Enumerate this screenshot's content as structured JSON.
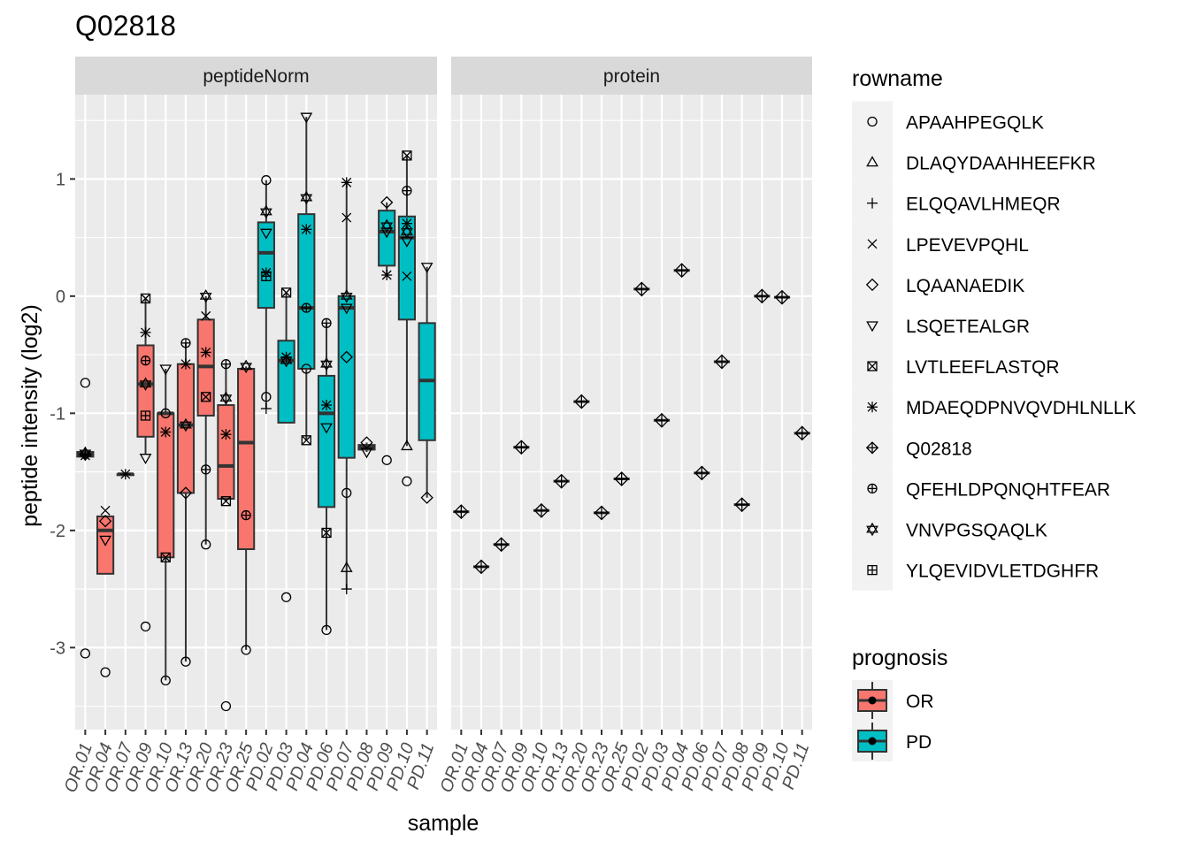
{
  "chart_data": {
    "type": "box",
    "title": "Q02818",
    "xlabel": "sample",
    "ylabel": "peptide intensity (log2)",
    "ylim": [
      -3.7,
      1.72
    ],
    "yticks": [
      -3,
      -2,
      -1,
      0,
      1
    ],
    "facets": [
      "peptideNorm",
      "protein"
    ],
    "samples": [
      "OR.01",
      "OR.04",
      "OR.07",
      "OR.09",
      "OR.10",
      "OR.13",
      "OR.20",
      "OR.23",
      "OR.25",
      "PD.02",
      "PD.03",
      "PD.04",
      "PD.06",
      "PD.07",
      "PD.08",
      "PD.09",
      "PD.10",
      "PD.11"
    ],
    "sample_prognosis": [
      "OR",
      "OR",
      "OR",
      "OR",
      "OR",
      "OR",
      "OR",
      "OR",
      "OR",
      "PD",
      "PD",
      "PD",
      "PD",
      "PD",
      "PD",
      "PD",
      "PD",
      "PD"
    ],
    "rownames": [
      "APAAHPEGQLK",
      "DLAQYDAAHHEEFKR",
      "ELQQAVLHMEQR",
      "LPEVEVPQHL",
      "LQAANAEDIK",
      "LSQETEALGR",
      "LVTLEEFLASTQR",
      "MDAEQDPNVQVDHLNLLK",
      "Q02818",
      "QFEHLDPQNQHTFEAR",
      "VNVPGSQAQLK",
      "YLQEVIDVLETDGHFR"
    ],
    "rowname_shapes": [
      "circle-open",
      "triangle-open",
      "plus",
      "cross",
      "diamond-open",
      "triangle-down-open",
      "square-cross",
      "asterisk",
      "diamond-plus",
      "circle-plus",
      "hexagram",
      "square-plus"
    ],
    "legend_rowname_title": "rowname",
    "legend_prognosis_title": "prognosis",
    "prognosis_levels": [
      "OR",
      "PD"
    ],
    "prognosis_colors": {
      "OR": "#F8766D",
      "PD": "#00BFC4"
    },
    "boxes": [
      {
        "sample": "OR.01",
        "q1": -1.37,
        "median": -1.35,
        "q3": -1.33,
        "low": -1.38,
        "high": -1.32
      },
      {
        "sample": "OR.04",
        "q1": -2.37,
        "median": -2.0,
        "q3": -1.88,
        "low": -2.37,
        "high": -1.88
      },
      {
        "sample": "OR.07",
        "q1": -1.52,
        "median": -1.52,
        "q3": -1.52,
        "low": -1.52,
        "high": -1.52
      },
      {
        "sample": "OR.09",
        "q1": -1.2,
        "median": -0.75,
        "q3": -0.42,
        "low": -1.35,
        "high": -0.02
      },
      {
        "sample": "OR.10",
        "q1": -2.23,
        "median": -1.0,
        "q3": -1.0,
        "low": -3.28,
        "high": -0.62
      },
      {
        "sample": "OR.13",
        "q1": -1.68,
        "median": -1.1,
        "q3": -0.58,
        "low": -3.12,
        "high": -0.4
      },
      {
        "sample": "OR.20",
        "q1": -1.02,
        "median": -0.6,
        "q3": -0.2,
        "low": -2.12,
        "high": 0.0
      },
      {
        "sample": "OR.23",
        "q1": -1.73,
        "median": -1.45,
        "q3": -0.93,
        "low": -1.75,
        "high": -0.58
      },
      {
        "sample": "OR.25",
        "q1": -2.16,
        "median": -1.25,
        "q3": -0.62,
        "low": -3.02,
        "high": -0.6
      },
      {
        "sample": "PD.02",
        "q1": -0.1,
        "median": 0.37,
        "q3": 0.63,
        "low": -0.96,
        "high": 0.99
      },
      {
        "sample": "PD.03",
        "q1": -1.08,
        "median": -0.55,
        "q3": -0.38,
        "low": -1.08,
        "high": 0.03
      },
      {
        "sample": "PD.04",
        "q1": -0.62,
        "median": -0.1,
        "q3": 0.7,
        "low": -1.23,
        "high": 1.53
      },
      {
        "sample": "PD.06",
        "q1": -1.8,
        "median": -1.0,
        "q3": -0.68,
        "low": -2.85,
        "high": -0.23
      },
      {
        "sample": "PD.07",
        "q1": -1.38,
        "median": -0.1,
        "q3": 0.0,
        "low": -2.5,
        "high": 0.97
      },
      {
        "sample": "PD.08",
        "q1": -1.31,
        "median": -1.29,
        "q3": -1.27,
        "low": -1.33,
        "high": -1.25
      },
      {
        "sample": "PD.09",
        "q1": 0.26,
        "median": 0.55,
        "q3": 0.73,
        "low": 0.18,
        "high": 0.8
      },
      {
        "sample": "PD.10",
        "q1": -0.2,
        "median": 0.5,
        "q3": 0.68,
        "low": -1.28,
        "high": 1.2
      },
      {
        "sample": "PD.11",
        "q1": -1.23,
        "median": -0.72,
        "q3": -0.23,
        "low": -1.72,
        "high": 0.25
      }
    ],
    "outliers": [
      {
        "sample": "OR.01",
        "rowname": "LSQETEALGR",
        "y": -0.74
      },
      {
        "sample": "OR.01",
        "rowname": "APAAHPEGQLK",
        "y": -3.05
      },
      {
        "sample": "OR.04",
        "rowname": "APAAHPEGQLK",
        "y": -3.21
      },
      {
        "sample": "OR.09",
        "rowname": "APAAHPEGQLK",
        "y": -2.82
      },
      {
        "sample": "OR.23",
        "rowname": "APAAHPEGQLK",
        "y": -3.5
      },
      {
        "sample": "PD.03",
        "rowname": "APAAHPEGQLK",
        "y": -2.57
      },
      {
        "sample": "PD.09",
        "rowname": "APAAHPEGQLK",
        "y": -1.4
      },
      {
        "sample": "PD.10",
        "rowname": "APAAHPEGQLK",
        "y": -1.58
      }
    ],
    "points": [
      {
        "sample": "OR.01",
        "rowname": "Q02818",
        "y": -1.35
      },
      {
        "sample": "OR.01",
        "rowname": "VNVPGSQAQLK",
        "y": -1.34
      },
      {
        "sample": "OR.01",
        "rowname": "MDAEQDPNVQVDHLNLLK",
        "y": -1.36
      },
      {
        "sample": "OR.04",
        "rowname": "LPEVEVPQHL",
        "y": -1.83
      },
      {
        "sample": "OR.04",
        "rowname": "LSQETEALGR",
        "y": -2.08
      },
      {
        "sample": "OR.04",
        "rowname": "LQAANAEDIK",
        "y": -1.92
      },
      {
        "sample": "OR.07",
        "rowname": "MDAEQDPNVQVDHLNLLK",
        "y": -1.52
      },
      {
        "sample": "OR.09",
        "rowname": "LVTLEEFLASTQR",
        "y": -0.02
      },
      {
        "sample": "OR.09",
        "rowname": "MDAEQDPNVQVDHLNLLK",
        "y": -0.31
      },
      {
        "sample": "OR.09",
        "rowname": "QFEHLDPQNQHTFEAR",
        "y": -0.55
      },
      {
        "sample": "OR.09",
        "rowname": "VNVPGSQAQLK",
        "y": -0.75
      },
      {
        "sample": "OR.09",
        "rowname": "YLQEVIDVLETDGHFR",
        "y": -1.02
      },
      {
        "sample": "OR.09",
        "rowname": "LSQETEALGR",
        "y": -1.38
      },
      {
        "sample": "OR.10",
        "rowname": "LSQETEALGR",
        "y": -0.62
      },
      {
        "sample": "OR.10",
        "rowname": "APAAHPEGQLK",
        "y": -1.0
      },
      {
        "sample": "OR.10",
        "rowname": "MDAEQDPNVQVDHLNLLK",
        "y": -1.16
      },
      {
        "sample": "OR.10",
        "rowname": "LVTLEEFLASTQR",
        "y": -2.23
      },
      {
        "sample": "OR.10",
        "rowname": "APAAHPEGQLK",
        "y": -3.28
      },
      {
        "sample": "OR.13",
        "rowname": "QFEHLDPQNQHTFEAR",
        "y": -0.4
      },
      {
        "sample": "OR.13",
        "rowname": "MDAEQDPNVQVDHLNLLK",
        "y": -0.58
      },
      {
        "sample": "OR.13",
        "rowname": "VNVPGSQAQLK",
        "y": -1.1
      },
      {
        "sample": "OR.13",
        "rowname": "LQAANAEDIK",
        "y": -1.68
      },
      {
        "sample": "OR.13",
        "rowname": "APAAHPEGQLK",
        "y": -3.12
      },
      {
        "sample": "OR.20",
        "rowname": "VNVPGSQAQLK",
        "y": 0.0
      },
      {
        "sample": "OR.20",
        "rowname": "LPEVEVPQHL",
        "y": -0.17
      },
      {
        "sample": "OR.20",
        "rowname": "MDAEQDPNVQVDHLNLLK",
        "y": -0.48
      },
      {
        "sample": "OR.20",
        "rowname": "LVTLEEFLASTQR",
        "y": -0.86
      },
      {
        "sample": "OR.20",
        "rowname": "QFEHLDPQNQHTFEAR",
        "y": -1.48
      },
      {
        "sample": "OR.20",
        "rowname": "APAAHPEGQLK",
        "y": -2.12
      },
      {
        "sample": "OR.23",
        "rowname": "QFEHLDPQNQHTFEAR",
        "y": -0.58
      },
      {
        "sample": "OR.23",
        "rowname": "VNVPGSQAQLK",
        "y": -0.87
      },
      {
        "sample": "OR.23",
        "rowname": "MDAEQDPNVQVDHLNLLK",
        "y": -1.18
      },
      {
        "sample": "OR.23",
        "rowname": "LVTLEEFLASTQR",
        "y": -1.75
      },
      {
        "sample": "OR.25",
        "rowname": "VNVPGSQAQLK",
        "y": -0.6
      },
      {
        "sample": "OR.25",
        "rowname": "QFEHLDPQNQHTFEAR",
        "y": -1.87
      },
      {
        "sample": "OR.25",
        "rowname": "APAAHPEGQLK",
        "y": -3.02
      },
      {
        "sample": "PD.02",
        "rowname": "APAAHPEGQLK",
        "y": 0.99
      },
      {
        "sample": "PD.02",
        "rowname": "VNVPGSQAQLK",
        "y": 0.72
      },
      {
        "sample": "PD.02",
        "rowname": "LSQETEALGR",
        "y": 0.54
      },
      {
        "sample": "PD.02",
        "rowname": "MDAEQDPNVQVDHLNLLK",
        "y": 0.2
      },
      {
        "sample": "PD.02",
        "rowname": "YLQEVIDVLETDGHFR",
        "y": 0.17
      },
      {
        "sample": "PD.02",
        "rowname": "APAAHPEGQLK",
        "y": -0.86
      },
      {
        "sample": "PD.02",
        "rowname": "ELQQAVLHMEQR",
        "y": -0.96
      },
      {
        "sample": "PD.03",
        "rowname": "LVTLEEFLASTQR",
        "y": 0.03
      },
      {
        "sample": "PD.03",
        "rowname": "MDAEQDPNVQVDHLNLLK",
        "y": -0.52
      },
      {
        "sample": "PD.03",
        "rowname": "VNVPGSQAQLK",
        "y": -0.55
      },
      {
        "sample": "PD.04",
        "rowname": "LSQETEALGR",
        "y": 1.53
      },
      {
        "sample": "PD.04",
        "rowname": "VNVPGSQAQLK",
        "y": 0.84
      },
      {
        "sample": "PD.04",
        "rowname": "MDAEQDPNVQVDHLNLLK",
        "y": 0.57
      },
      {
        "sample": "PD.04",
        "rowname": "QFEHLDPQNQHTFEAR",
        "y": -0.1
      },
      {
        "sample": "PD.04",
        "rowname": "APAAHPEGQLK",
        "y": -0.62
      },
      {
        "sample": "PD.04",
        "rowname": "LVTLEEFLASTQR",
        "y": -1.23
      },
      {
        "sample": "PD.06",
        "rowname": "QFEHLDPQNQHTFEAR",
        "y": -0.23
      },
      {
        "sample": "PD.06",
        "rowname": "VNVPGSQAQLK",
        "y": -0.58
      },
      {
        "sample": "PD.06",
        "rowname": "MDAEQDPNVQVDHLNLLK",
        "y": -0.93
      },
      {
        "sample": "PD.06",
        "rowname": "LSQETEALGR",
        "y": -1.12
      },
      {
        "sample": "PD.06",
        "rowname": "LVTLEEFLASTQR",
        "y": -2.02
      },
      {
        "sample": "PD.06",
        "rowname": "APAAHPEGQLK",
        "y": -2.85
      },
      {
        "sample": "PD.07",
        "rowname": "MDAEQDPNVQVDHLNLLK",
        "y": 0.97
      },
      {
        "sample": "PD.07",
        "rowname": "LPEVEVPQHL",
        "y": 0.67
      },
      {
        "sample": "PD.07",
        "rowname": "VNVPGSQAQLK",
        "y": 0.0
      },
      {
        "sample": "PD.07",
        "rowname": "LSQETEALGR",
        "y": -0.1
      },
      {
        "sample": "PD.07",
        "rowname": "LQAANAEDIK",
        "y": -0.52
      },
      {
        "sample": "PD.07",
        "rowname": "APAAHPEGQLK",
        "y": -1.68
      },
      {
        "sample": "PD.07",
        "rowname": "DLAQYDAAHHEEFKR",
        "y": -2.32
      },
      {
        "sample": "PD.07",
        "rowname": "ELQQAVLHMEQR",
        "y": -2.5
      },
      {
        "sample": "PD.08",
        "rowname": "LQAANAEDIK",
        "y": -1.25
      },
      {
        "sample": "PD.08",
        "rowname": "LSQETEALGR",
        "y": -1.33
      },
      {
        "sample": "PD.09",
        "rowname": "LQAANAEDIK",
        "y": 0.8
      },
      {
        "sample": "PD.09",
        "rowname": "VNVPGSQAQLK",
        "y": 0.6
      },
      {
        "sample": "PD.09",
        "rowname": "LSQETEALGR",
        "y": 0.55
      },
      {
        "sample": "PD.09",
        "rowname": "MDAEQDPNVQVDHLNLLK",
        "y": 0.18
      },
      {
        "sample": "PD.10",
        "rowname": "LVTLEEFLASTQR",
        "y": 1.2
      },
      {
        "sample": "PD.10",
        "rowname": "QFEHLDPQNQHTFEAR",
        "y": 0.9
      },
      {
        "sample": "PD.10",
        "rowname": "MDAEQDPNVQVDHLNLLK",
        "y": 0.62
      },
      {
        "sample": "PD.10",
        "rowname": "VNVPGSQAQLK",
        "y": 0.55
      },
      {
        "sample": "PD.10",
        "rowname": "LSQETEALGR",
        "y": 0.47
      },
      {
        "sample": "PD.10",
        "rowname": "LPEVEVPQHL",
        "y": 0.17
      },
      {
        "sample": "PD.10",
        "rowname": "DLAQYDAAHHEEFKR",
        "y": -1.28
      },
      {
        "sample": "PD.11",
        "rowname": "LSQETEALGR",
        "y": 0.25
      },
      {
        "sample": "PD.11",
        "rowname": "LQAANAEDIK",
        "y": -1.72
      }
    ],
    "protein_values": [
      -1.84,
      -2.31,
      -2.12,
      -1.29,
      -1.83,
      -1.58,
      -0.9,
      -1.85,
      -1.56,
      0.06,
      -1.06,
      0.22,
      -1.51,
      -0.56,
      -1.78,
      0.0,
      -0.01,
      -1.17
    ]
  }
}
